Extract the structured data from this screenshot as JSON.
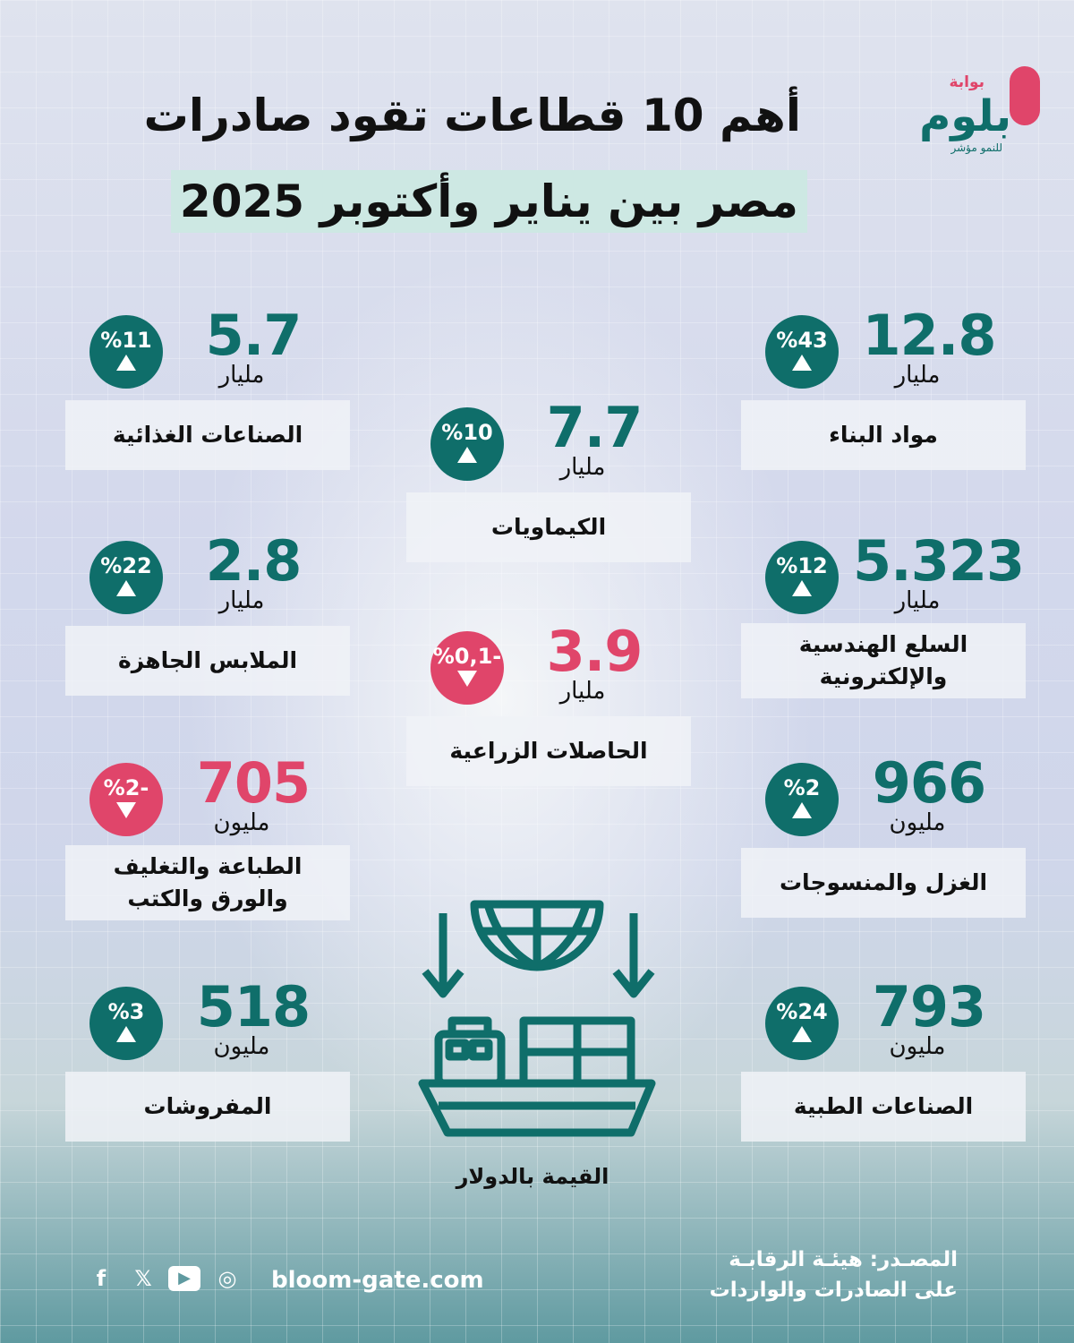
{
  "brand": {
    "small": "بوابة",
    "name": "بلوم",
    "tagline": "للنمو مؤشر"
  },
  "title": {
    "line1": "أهم 10 قطاعات تقود صادرات",
    "line2": "مصر بين يناير وأكتوبر 2025"
  },
  "colors": {
    "positive": "#0f6e6a",
    "negative": "#e0456a"
  },
  "sectors": [
    {
      "name": "مواد البناء",
      "value": "12.8",
      "unit": "مليار",
      "change": "%43",
      "direction": "up"
    },
    {
      "name": "السلع الهندسية والإلكترونية",
      "value": "5.323",
      "unit": "مليار",
      "change": "%12",
      "direction": "up"
    },
    {
      "name": "الغزل والمنسوجات",
      "value": "966",
      "unit": "مليون",
      "change": "%2",
      "direction": "up"
    },
    {
      "name": "الصناعات الطبية",
      "value": "793",
      "unit": "مليون",
      "change": "%24",
      "direction": "up"
    },
    {
      "name": "الكيماويات",
      "value": "7.7",
      "unit": "مليار",
      "change": "%10",
      "direction": "up"
    },
    {
      "name": "الحاصلات الزراعية",
      "value": "3.9",
      "unit": "مليار",
      "change": "%0,1-",
      "direction": "down"
    },
    {
      "name": "الصناعات الغذائية",
      "value": "5.7",
      "unit": "مليار",
      "change": "%11",
      "direction": "up"
    },
    {
      "name": "الملابس الجاهزة",
      "value": "2.8",
      "unit": "مليار",
      "change": "%22",
      "direction": "up"
    },
    {
      "name": "الطباعة والتغليف والورق والكتب",
      "value": "705",
      "unit": "مليون",
      "change": "%2-",
      "direction": "down"
    },
    {
      "name": "المفروشات",
      "value": "518",
      "unit": "مليون",
      "change": "%3",
      "direction": "up"
    }
  ],
  "note": "القيمة  بالدولار",
  "footer": {
    "source_line1": "المصـدر: هيئـة الرقابـة",
    "source_line2": "على الصادرات والواردات",
    "website": "bloom-gate.com",
    "social": [
      "f",
      "𝕏",
      "▶",
      "◎"
    ]
  }
}
